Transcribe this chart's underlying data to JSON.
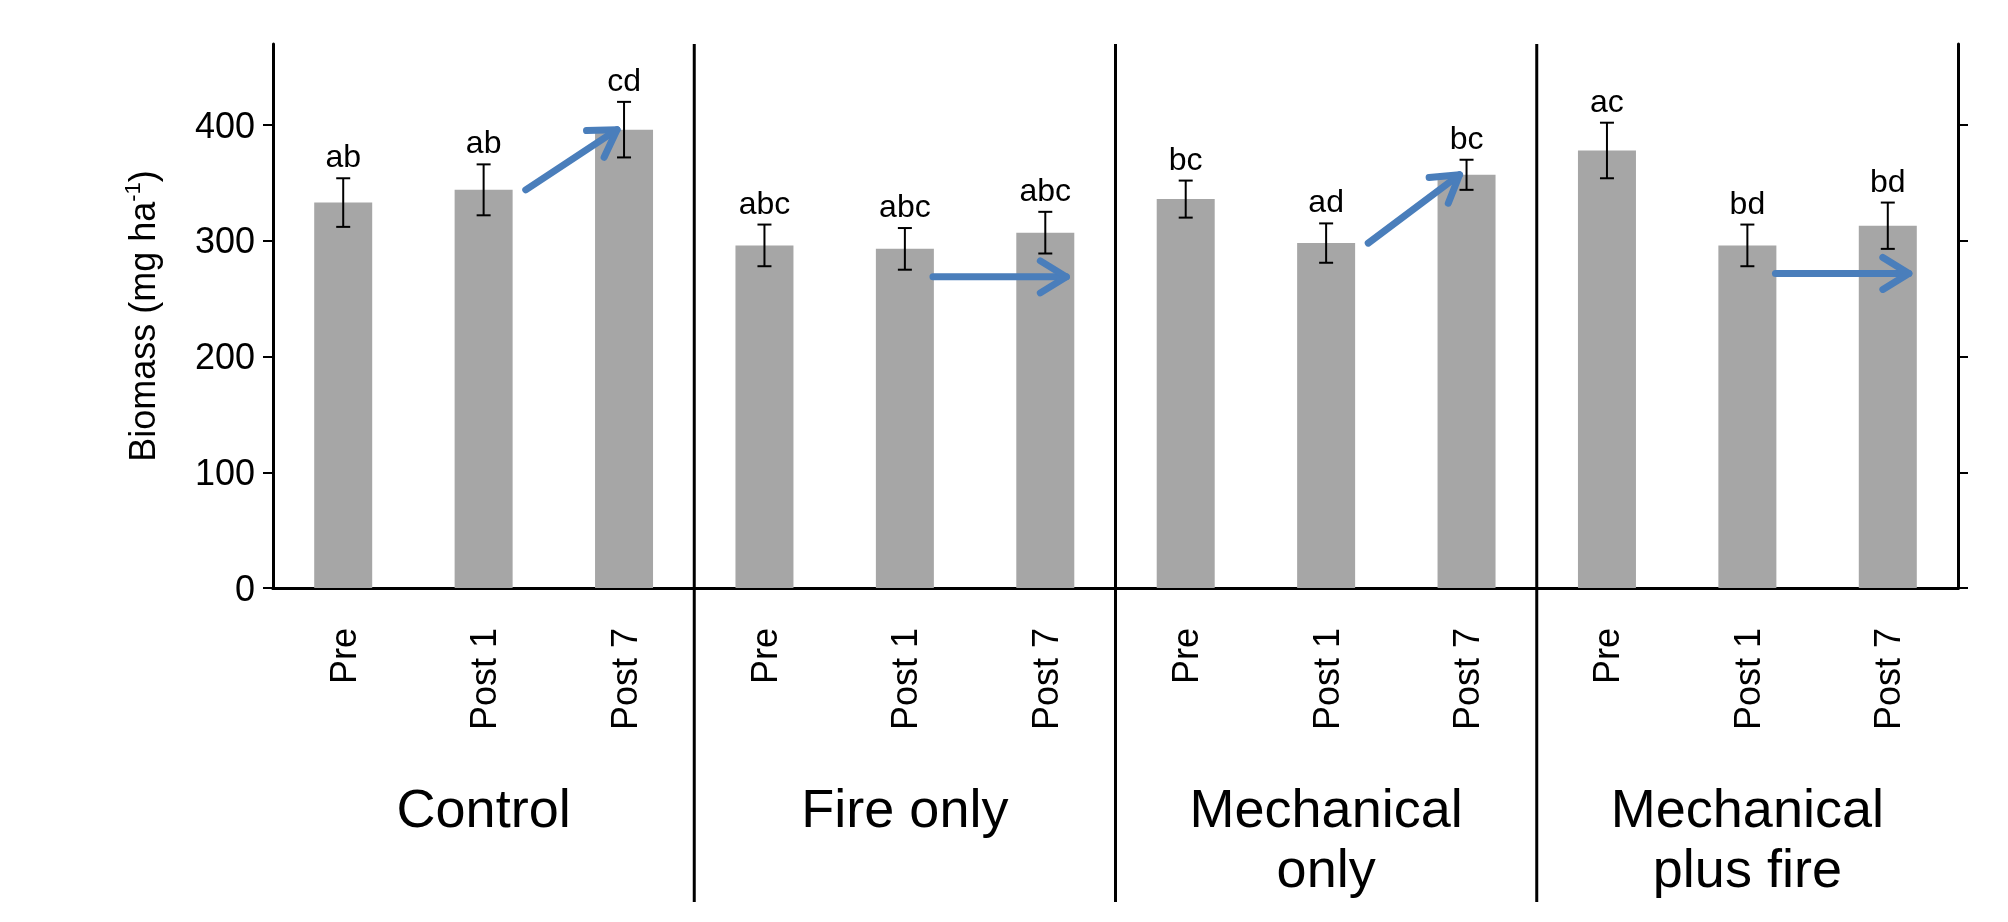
{
  "chart_data": {
    "type": "bar",
    "ylabel": "Biomass (mg ha$^{-1}$)",
    "categories": [
      "Pre",
      "Post 1",
      "Post 7",
      "Pre",
      "Post 1",
      "Post 7",
      "Pre",
      "Post 1",
      "Post 7",
      "Pre",
      "Post 1",
      "Post 7"
    ],
    "values": [
      333,
      344,
      396,
      296,
      293,
      307,
      336,
      298,
      357,
      378,
      296,
      313
    ],
    "errors": [
      21,
      22,
      24,
      18,
      18,
      18,
      16,
      17,
      13,
      24,
      18,
      20
    ],
    "value_labels": [
      "ab",
      "ab",
      "cd",
      "abc",
      "abc",
      "abc",
      "bc",
      "ad",
      "bc",
      "ac",
      "bd",
      "bd"
    ],
    "color": "#a6a6a6",
    "ylim": [
      0,
      470
    ],
    "yticks": [
      0,
      100,
      200,
      300,
      400
    ],
    "annotations": [
      "Control",
      "Fire only",
      "Mechanical only",
      "Mechanical plus fire"
    ]
  }
}
